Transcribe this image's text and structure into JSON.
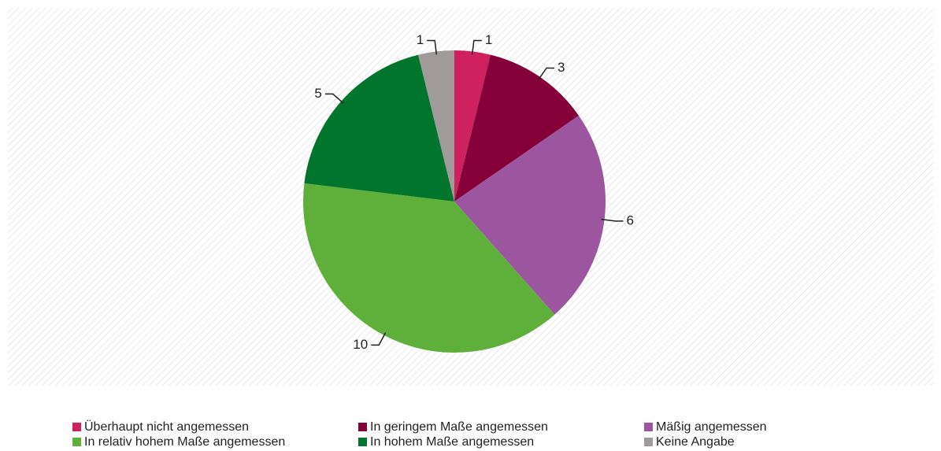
{
  "chart_data": {
    "type": "pie",
    "categories": [
      "Überhaupt nicht angemessen",
      "In geringem Maße angemessen",
      "Mäßig angemessen",
      "In relativ hohem Maße angemessen",
      "In hohem Maße angemessen",
      "Keine Angabe"
    ],
    "values": [
      1,
      3,
      6,
      10,
      5,
      1
    ],
    "colors": [
      "#d0215f",
      "#850038",
      "#9c56a0",
      "#5fb03a",
      "#00752b",
      "#a09a9a"
    ]
  }
}
